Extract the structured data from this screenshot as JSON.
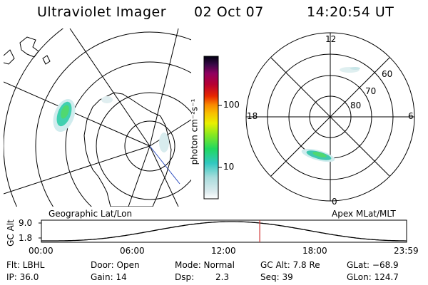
{
  "header": {
    "instrument": "Ultraviolet Imager",
    "date": "02 Oct 07",
    "time": "14:20:54 UT"
  },
  "colorbar": {
    "unit_label": "photon cm⁻²s⁻¹",
    "ticks": [
      "100",
      "10"
    ],
    "scale": "log"
  },
  "left_panel": {
    "label": "Geographic Lat/Lon"
  },
  "right_panel": {
    "label": "Apex MLat/MLT",
    "mlt_labels": {
      "top": "12",
      "left": "18",
      "right": "6",
      "bottom": "0"
    },
    "lat_labels": [
      "60",
      "70",
      "80"
    ]
  },
  "orbit_plot": {
    "ylabel": "GC Alt",
    "yticks": [
      "9.0",
      "1.8"
    ],
    "xticks": [
      "00:00",
      "06:00",
      "12:00",
      "18:00",
      "23:59"
    ],
    "current_marker_hours": 14.35,
    "marker_color": "#d03030"
  },
  "info": {
    "row1": {
      "filter": "Flt: LBHL",
      "door": "Door: Open",
      "mode": "Mode: Normal",
      "gc_alt": "GC Alt: 7.8 Re",
      "glat": "GLat: −68.9"
    },
    "row2": {
      "ip": "IP: 36.0",
      "gain": "Gain: 14",
      "dsp_label": "Dsp:",
      "dsp_value": "2.3",
      "seq": "Seq: 39",
      "glon": "GLon: 124.7"
    }
  }
}
